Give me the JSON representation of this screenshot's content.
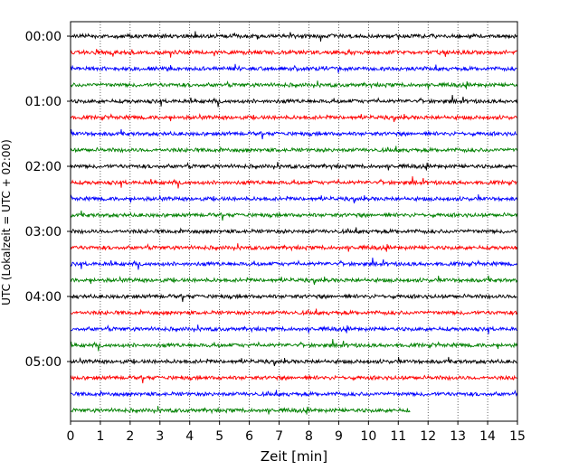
{
  "chart_data": {
    "type": "line",
    "title": "",
    "xlabel": "Zeit  [min]",
    "ylabel": "UTC (Lokalzeit = UTC + 02:00)",
    "xlim": [
      0,
      15
    ],
    "x_ticks": [
      "0",
      "1",
      "2",
      "3",
      "4",
      "5",
      "6",
      "7",
      "8",
      "9",
      "10",
      "11",
      "12",
      "13",
      "14",
      "15"
    ],
    "y_tick_labels": [
      "00:00",
      "01:00",
      "02:00",
      "03:00",
      "04:00",
      "05:00"
    ],
    "grid": "vertical dotted",
    "colors": [
      "#000000",
      "#ff0000",
      "#0000ff",
      "#008000"
    ],
    "rows": [
      {
        "utc_start": "00:00",
        "color": "#000000",
        "duration_min": 15
      },
      {
        "utc_start": "00:15",
        "color": "#ff0000",
        "duration_min": 15
      },
      {
        "utc_start": "00:30",
        "color": "#0000ff",
        "duration_min": 15
      },
      {
        "utc_start": "00:45",
        "color": "#008000",
        "duration_min": 15
      },
      {
        "utc_start": "01:00",
        "color": "#000000",
        "duration_min": 15
      },
      {
        "utc_start": "01:15",
        "color": "#ff0000",
        "duration_min": 15
      },
      {
        "utc_start": "01:30",
        "color": "#0000ff",
        "duration_min": 15
      },
      {
        "utc_start": "01:45",
        "color": "#008000",
        "duration_min": 15
      },
      {
        "utc_start": "02:00",
        "color": "#000000",
        "duration_min": 15
      },
      {
        "utc_start": "02:15",
        "color": "#ff0000",
        "duration_min": 15
      },
      {
        "utc_start": "02:30",
        "color": "#0000ff",
        "duration_min": 15
      },
      {
        "utc_start": "02:45",
        "color": "#008000",
        "duration_min": 15
      },
      {
        "utc_start": "03:00",
        "color": "#000000",
        "duration_min": 15
      },
      {
        "utc_start": "03:15",
        "color": "#ff0000",
        "duration_min": 15
      },
      {
        "utc_start": "03:30",
        "color": "#0000ff",
        "duration_min": 15
      },
      {
        "utc_start": "03:45",
        "color": "#008000",
        "duration_min": 15
      },
      {
        "utc_start": "04:00",
        "color": "#000000",
        "duration_min": 15
      },
      {
        "utc_start": "04:15",
        "color": "#ff0000",
        "duration_min": 15
      },
      {
        "utc_start": "04:30",
        "color": "#0000ff",
        "duration_min": 15
      },
      {
        "utc_start": "04:45",
        "color": "#008000",
        "duration_min": 15
      },
      {
        "utc_start": "05:00",
        "color": "#000000",
        "duration_min": 15
      },
      {
        "utc_start": "05:15",
        "color": "#ff0000",
        "duration_min": 15
      },
      {
        "utc_start": "05:30",
        "color": "#0000ff",
        "duration_min": 15
      },
      {
        "utc_start": "05:45",
        "color": "#008000",
        "duration_min": 11.4
      }
    ]
  }
}
